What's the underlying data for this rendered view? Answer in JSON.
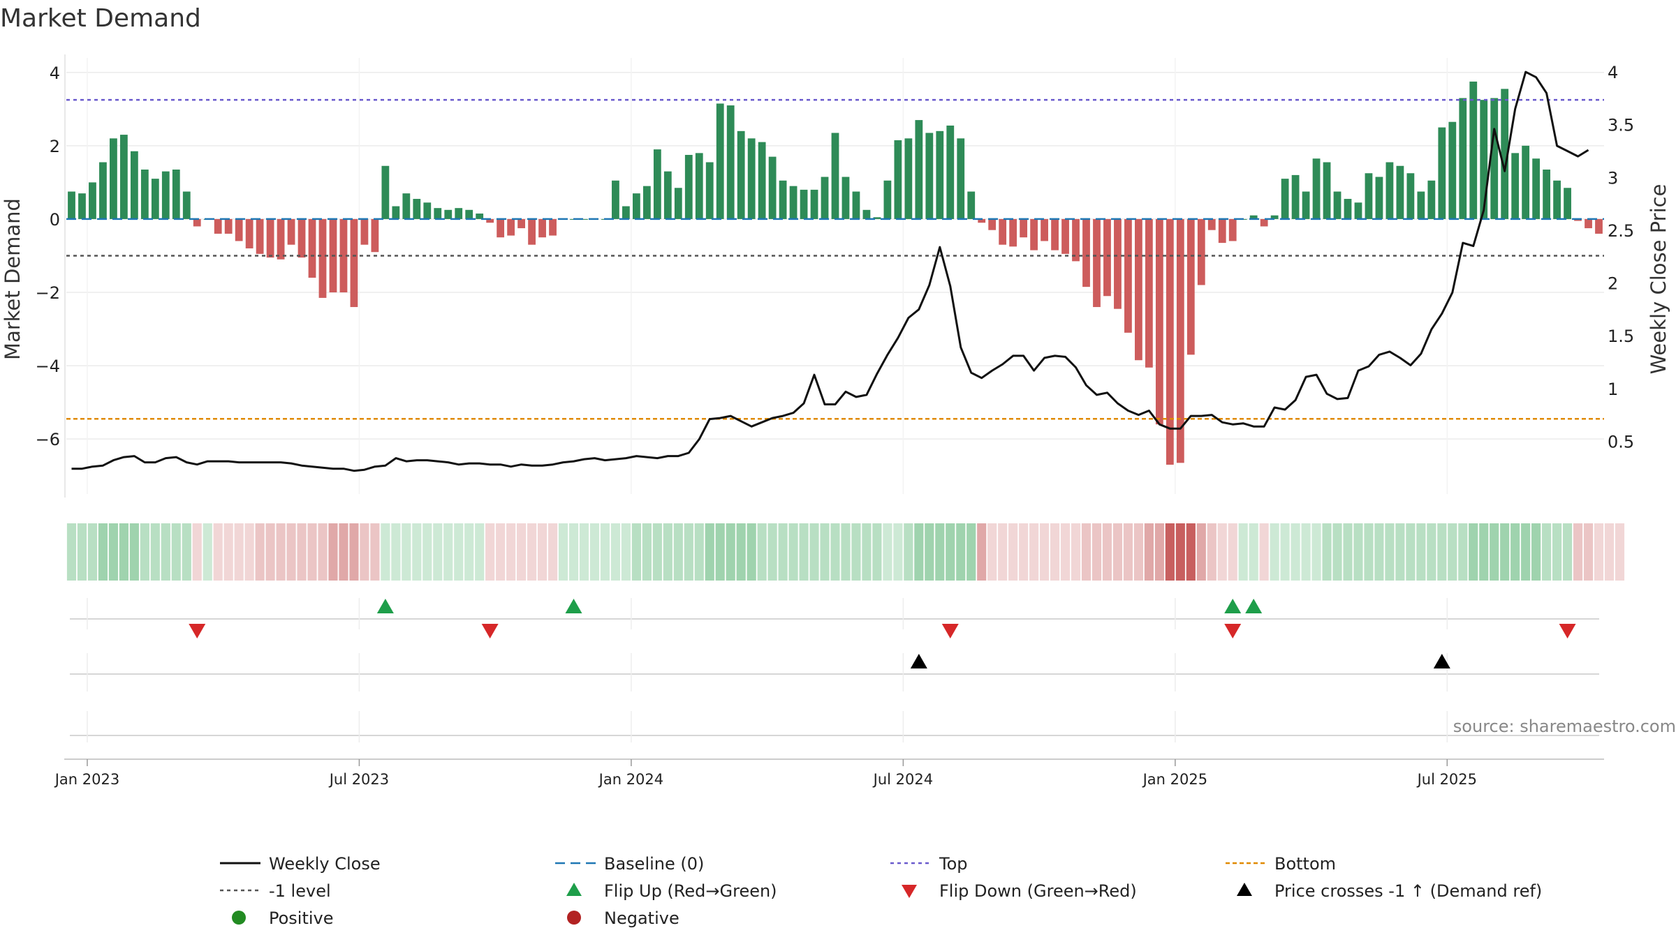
{
  "chart_data": {
    "type": "bar",
    "title": "Market Demand",
    "ylabel_left": "Market Demand",
    "ylabel_right": "Weekly Close Price",
    "ylim_left": [
      -7.5,
      4.3
    ],
    "ylim_right": [
      0.0,
      4.1
    ],
    "yticks_left": [
      {
        "v": 4,
        "label": "4"
      },
      {
        "v": 2,
        "label": "2"
      },
      {
        "v": 0,
        "label": "0"
      },
      {
        "v": -2,
        "label": "−2"
      },
      {
        "v": -4,
        "label": "−4"
      },
      {
        "v": -6,
        "label": "−6"
      }
    ],
    "yticks_right": [
      {
        "v": 4,
        "label": "4"
      },
      {
        "v": 3.5,
        "label": "3.5"
      },
      {
        "v": 3,
        "label": "3"
      },
      {
        "v": 2.5,
        "label": "2.5"
      },
      {
        "v": 2,
        "label": "2"
      },
      {
        "v": 1.5,
        "label": "1.5"
      },
      {
        "v": 1,
        "label": "1"
      },
      {
        "v": 0.5,
        "label": "0.5"
      }
    ],
    "x_start": "2022-12-19",
    "x_ticks": [
      {
        "week": 2,
        "label": "Jan 2023"
      },
      {
        "week": 28,
        "label": "Jul 2023"
      },
      {
        "week": 54,
        "label": "Jan 2024"
      },
      {
        "week": 80,
        "label": "Jul 2024"
      },
      {
        "week": 106,
        "label": "Jan 2025"
      },
      {
        "week": 132,
        "label": "Jul 2025"
      }
    ],
    "reference_lines": {
      "top": 3.25,
      "bottom": -5.45,
      "minus_one": -1.0,
      "baseline": 0
    },
    "series": [
      {
        "name": "Market Demand",
        "values": [
          0.75,
          0.7,
          1.0,
          1.55,
          2.2,
          2.3,
          1.85,
          1.35,
          1.1,
          1.3,
          1.35,
          0.75,
          -0.2,
          0,
          -0.4,
          -0.4,
          -0.6,
          -0.8,
          -0.95,
          -1.05,
          -1.1,
          -0.7,
          -1.05,
          -1.6,
          -2.15,
          -2.0,
          -2.0,
          -2.4,
          -0.7,
          -0.9,
          1.45,
          0.35,
          0.7,
          0.55,
          0.45,
          0.3,
          0.25,
          0.3,
          0.25,
          0.15,
          -0.1,
          -0.5,
          -0.45,
          -0.25,
          -0.7,
          -0.5,
          -0.45,
          0,
          0,
          0,
          0,
          0,
          1.05,
          0.35,
          0.7,
          0.9,
          1.9,
          1.3,
          0.85,
          1.75,
          1.8,
          1.55,
          3.15,
          3.1,
          2.4,
          2.2,
          2.1,
          1.7,
          1.05,
          0.9,
          0.8,
          0.8,
          1.15,
          2.35,
          1.15,
          0.75,
          0.25,
          0.05,
          1.05,
          2.15,
          2.2,
          2.7,
          2.35,
          2.4,
          2.55,
          2.2,
          0.75,
          -0.1,
          -0.3,
          -0.7,
          -0.75,
          -0.5,
          -0.85,
          -0.6,
          -0.85,
          -0.95,
          -1.15,
          -1.85,
          -2.4,
          -2.1,
          -2.45,
          -3.1,
          -3.85,
          -4.05,
          -5.6,
          -6.7,
          -6.65,
          -3.7,
          -1.8,
          -0.3,
          -0.65,
          -0.6,
          0,
          0.1,
          -0.2,
          0.1,
          1.1,
          1.2,
          0.75,
          1.65,
          1.55,
          0.75,
          0.55,
          0.45,
          1.25,
          1.15,
          1.55,
          1.45,
          1.25,
          0.75,
          1.05,
          2.5,
          2.65,
          3.3,
          3.75,
          3.25,
          3.3,
          3.55,
          1.8,
          2.0,
          1.65,
          1.35,
          1.05,
          0.85,
          -0.05,
          -0.25,
          -0.4
        ]
      },
      {
        "name": "Weekly Close",
        "values": [
          0.24,
          0.24,
          0.26,
          0.27,
          0.32,
          0.35,
          0.36,
          0.3,
          0.3,
          0.34,
          0.35,
          0.3,
          0.28,
          0.31,
          0.31,
          0.31,
          0.3,
          0.3,
          0.3,
          0.3,
          0.3,
          0.29,
          0.27,
          0.26,
          0.25,
          0.24,
          0.24,
          0.22,
          0.23,
          0.26,
          0.27,
          0.34,
          0.31,
          0.32,
          0.32,
          0.31,
          0.3,
          0.28,
          0.29,
          0.29,
          0.28,
          0.28,
          0.26,
          0.28,
          0.27,
          0.27,
          0.28,
          0.3,
          0.31,
          0.33,
          0.34,
          0.32,
          0.33,
          0.34,
          0.36,
          0.35,
          0.34,
          0.36,
          0.36,
          0.39,
          0.52,
          0.71,
          0.72,
          0.74,
          0.69,
          0.64,
          0.68,
          0.72,
          0.74,
          0.77,
          0.86,
          1.13,
          0.85,
          0.85,
          0.97,
          0.92,
          0.94,
          1.14,
          1.32,
          1.48,
          1.67,
          1.75,
          1.98,
          2.34,
          1.97,
          1.39,
          1.15,
          1.1,
          1.17,
          1.23,
          1.31,
          1.31,
          1.17,
          1.29,
          1.31,
          1.3,
          1.2,
          1.03,
          0.94,
          0.96,
          0.86,
          0.79,
          0.75,
          0.79,
          0.66,
          0.62,
          0.62,
          0.74,
          0.74,
          0.75,
          0.68,
          0.66,
          0.67,
          0.64,
          0.64,
          0.82,
          0.8,
          0.89,
          1.11,
          1.13,
          0.95,
          0.9,
          0.91,
          1.17,
          1.21,
          1.32,
          1.35,
          1.29,
          1.22,
          1.33,
          1.56,
          1.71,
          1.91,
          2.38,
          2.35,
          2.69,
          3.46,
          3.06,
          3.65,
          4.0,
          3.95,
          3.8,
          3.3,
          3.25,
          3.2,
          3.26
        ]
      }
    ],
    "color_strip_levels": [
      2,
      2,
      2,
      3,
      3,
      3,
      3,
      2,
      2,
      2,
      2,
      2,
      1,
      1,
      1,
      1,
      1,
      1,
      2,
      2,
      2,
      2,
      2,
      2,
      2,
      3,
      3,
      3,
      2,
      2,
      1,
      1,
      1,
      1,
      1,
      1,
      1,
      1,
      1,
      1,
      1,
      1,
      1,
      1,
      1,
      1,
      1,
      1,
      1,
      1,
      1,
      1,
      1,
      1,
      2,
      2,
      2,
      2,
      2,
      2,
      2,
      3,
      3,
      3,
      3,
      3,
      2,
      2,
      2,
      2,
      2,
      2,
      2,
      2,
      2,
      2,
      2,
      2,
      1,
      1,
      2,
      3,
      3,
      3,
      3,
      3,
      3,
      3,
      1,
      1,
      1,
      1,
      1,
      1,
      1,
      1,
      1,
      2,
      2,
      2,
      2,
      2,
      2,
      3,
      3,
      4,
      4,
      4,
      3,
      2,
      1,
      1,
      1,
      1,
      1,
      1,
      1,
      1,
      1,
      1,
      2,
      2,
      2,
      2,
      2,
      2,
      2,
      2,
      2,
      2,
      2,
      2,
      2,
      2,
      3,
      3,
      3,
      3,
      3,
      3,
      3,
      2,
      2,
      2,
      2,
      2,
      1,
      1,
      1
    ],
    "markers": {
      "flip_up_weeks": [
        30,
        48,
        111,
        113
      ],
      "flip_down_weeks": [
        12,
        40,
        84,
        111,
        143
      ],
      "price_cross_weeks": [
        81,
        131
      ]
    },
    "legend": [
      {
        "key": "close",
        "label": "Weekly Close"
      },
      {
        "key": "baseline",
        "label": "Baseline (0)"
      },
      {
        "key": "top",
        "label": "Top"
      },
      {
        "key": "bottom",
        "label": "Bottom"
      },
      {
        "key": "minus1",
        "label": "-1 level"
      },
      {
        "key": "flipup",
        "label": "Flip Up (Red→Green)"
      },
      {
        "key": "flipdown",
        "label": "Flip Down (Green→Red)"
      },
      {
        "key": "cross",
        "label": "Price crosses -1 ↑ (Demand ref)"
      },
      {
        "key": "positive",
        "label": "Positive"
      },
      {
        "key": "negative",
        "label": "Negative"
      }
    ],
    "source": "source: sharemaestro.com",
    "colors": {
      "positive_bar": "#2e8b57",
      "negative_bar": "#cd5c5c",
      "close_line": "#111111",
      "baseline": "#1f77b4",
      "top": "#6a5acd",
      "bottom": "#e08a00",
      "minus_one": "#555555",
      "flip_up": "#1e9e4a",
      "flip_down": "#d62728",
      "cross": "#000000",
      "positive_dot": "#228b22",
      "negative_dot": "#b22222",
      "strip_green": [
        "#cde9d5",
        "#b8dfc3",
        "#9fd3ae",
        "#86c79a"
      ],
      "strip_red": [
        "#f1d6d6",
        "#ebc5c5",
        "#e0a8a8",
        "#c85f5f"
      ]
    }
  }
}
